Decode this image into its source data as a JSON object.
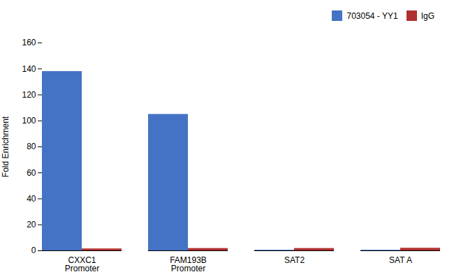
{
  "chart_data": {
    "type": "bar",
    "categories": [
      "CXXC1\nPromoter",
      "FAM193B\nPromoter",
      "SAT2",
      "SAT A"
    ],
    "series": [
      {
        "name": "703054 - YY1",
        "color": "#4472C4",
        "values": [
          138,
          105,
          0.5,
          0.5
        ]
      },
      {
        "name": "IgG",
        "color": "#B03030",
        "values": [
          1.5,
          1.8,
          1.8,
          2.0
        ]
      }
    ],
    "ylabel": "Fold Enrichment",
    "ylim": [
      0,
      160
    ],
    "yticks": [
      0,
      20,
      40,
      60,
      80,
      100,
      120,
      140,
      160
    ],
    "grid": false,
    "legend": "upper right"
  }
}
